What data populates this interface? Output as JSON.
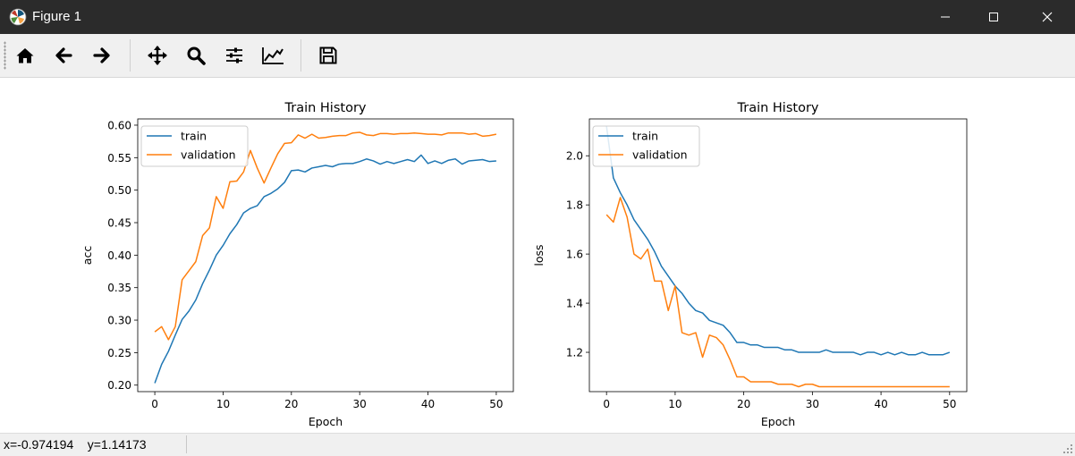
{
  "window": {
    "title": "Figure 1",
    "minimize_icon": "minimize-icon",
    "maximize_icon": "maximize-icon",
    "close_icon": "close-icon"
  },
  "toolbar": {
    "items": [
      {
        "name": "home-button",
        "icon": "home-icon"
      },
      {
        "name": "back-button",
        "icon": "arrow-left-icon"
      },
      {
        "name": "forward-button",
        "icon": "arrow-right-icon"
      },
      {
        "name": "pan-button",
        "icon": "move-icon"
      },
      {
        "name": "zoom-button",
        "icon": "magnifier-icon"
      },
      {
        "name": "subplots-button",
        "icon": "sliders-icon"
      },
      {
        "name": "edit-axes-button",
        "icon": "line-chart-icon"
      },
      {
        "name": "save-button",
        "icon": "floppy-disk-icon"
      }
    ]
  },
  "status": {
    "coords": "x=-0.974194    y=1.14173"
  },
  "colors": {
    "train": "#1f77b4",
    "validation": "#ff7f0e"
  },
  "chart_data": [
    {
      "type": "line",
      "title": "Train History",
      "xlabel": "Epoch",
      "ylabel": "acc",
      "xlim": [
        -2.5,
        52.5
      ],
      "ylim": [
        0.19,
        0.6096
      ],
      "xticks": [
        0,
        10,
        20,
        30,
        40,
        50
      ],
      "yticks": [
        0.2,
        0.25,
        0.3,
        0.35,
        0.4,
        0.45,
        0.5,
        0.55,
        0.6
      ],
      "ytick_decimals": 2,
      "grid": false,
      "legend": "upper left",
      "x": [
        0,
        1,
        2,
        3,
        4,
        5,
        6,
        7,
        8,
        9,
        10,
        11,
        12,
        13,
        14,
        15,
        16,
        17,
        18,
        19,
        20,
        21,
        22,
        23,
        24,
        25,
        26,
        27,
        28,
        29,
        30,
        31,
        32,
        33,
        34,
        35,
        36,
        37,
        38,
        39,
        40,
        41,
        42,
        43,
        44,
        45,
        46,
        47,
        48,
        49,
        50
      ],
      "series": [
        {
          "name": "train",
          "color": "#1f77b4",
          "values": [
            0.203,
            0.232,
            0.252,
            0.277,
            0.301,
            0.314,
            0.331,
            0.356,
            0.377,
            0.4,
            0.415,
            0.433,
            0.447,
            0.465,
            0.472,
            0.476,
            0.49,
            0.495,
            0.502,
            0.512,
            0.53,
            0.531,
            0.528,
            0.534,
            0.536,
            0.538,
            0.536,
            0.54,
            0.541,
            0.541,
            0.544,
            0.548,
            0.545,
            0.54,
            0.544,
            0.541,
            0.544,
            0.547,
            0.544,
            0.554,
            0.541,
            0.545,
            0.541,
            0.546,
            0.548,
            0.54,
            0.545,
            0.546,
            0.547,
            0.544,
            0.545
          ]
        },
        {
          "name": "validation",
          "color": "#ff7f0e",
          "values": [
            0.282,
            0.29,
            0.27,
            0.29,
            0.362,
            0.376,
            0.39,
            0.43,
            0.442,
            0.49,
            0.472,
            0.513,
            0.514,
            0.528,
            0.561,
            0.534,
            0.511,
            0.534,
            0.556,
            0.572,
            0.573,
            0.585,
            0.58,
            0.586,
            0.58,
            0.581,
            0.583,
            0.584,
            0.584,
            0.588,
            0.589,
            0.585,
            0.584,
            0.587,
            0.587,
            0.586,
            0.587,
            0.587,
            0.588,
            0.587,
            0.586,
            0.586,
            0.585,
            0.588,
            0.588,
            0.588,
            0.586,
            0.587,
            0.583,
            0.584,
            0.586
          ]
        }
      ]
    },
    {
      "type": "line",
      "title": "Train History",
      "xlabel": "Epoch",
      "ylabel": "loss",
      "xlim": [
        -2.5,
        52.5
      ],
      "ylim": [
        1.04,
        2.15
      ],
      "xticks": [
        0,
        10,
        20,
        30,
        40,
        50
      ],
      "yticks": [
        1.2,
        1.4,
        1.6,
        1.8,
        2.0
      ],
      "ytick_decimals": 1,
      "grid": false,
      "legend": "upper left",
      "x": [
        0,
        1,
        2,
        3,
        4,
        5,
        6,
        7,
        8,
        9,
        10,
        11,
        12,
        13,
        14,
        15,
        16,
        17,
        18,
        19,
        20,
        21,
        22,
        23,
        24,
        25,
        26,
        27,
        28,
        29,
        30,
        31,
        32,
        33,
        34,
        35,
        36,
        37,
        38,
        39,
        40,
        41,
        42,
        43,
        44,
        45,
        46,
        47,
        48,
        49,
        50
      ],
      "series": [
        {
          "name": "train",
          "color": "#1f77b4",
          "values": [
            2.12,
            1.91,
            1.85,
            1.8,
            1.74,
            1.7,
            1.66,
            1.61,
            1.55,
            1.51,
            1.47,
            1.44,
            1.4,
            1.37,
            1.36,
            1.33,
            1.32,
            1.31,
            1.28,
            1.24,
            1.24,
            1.23,
            1.23,
            1.22,
            1.22,
            1.22,
            1.21,
            1.21,
            1.2,
            1.2,
            1.2,
            1.2,
            1.21,
            1.2,
            1.2,
            1.2,
            1.2,
            1.19,
            1.2,
            1.2,
            1.19,
            1.2,
            1.19,
            1.2,
            1.19,
            1.19,
            1.2,
            1.19,
            1.19,
            1.19,
            1.2
          ]
        },
        {
          "name": "validation",
          "color": "#ff7f0e",
          "values": [
            1.76,
            1.73,
            1.83,
            1.75,
            1.6,
            1.58,
            1.62,
            1.49,
            1.49,
            1.37,
            1.47,
            1.28,
            1.27,
            1.28,
            1.18,
            1.27,
            1.26,
            1.23,
            1.17,
            1.1,
            1.1,
            1.08,
            1.08,
            1.08,
            1.08,
            1.07,
            1.07,
            1.07,
            1.06,
            1.07,
            1.07,
            1.06,
            1.06,
            1.06,
            1.06,
            1.06,
            1.06,
            1.06,
            1.06,
            1.06,
            1.06,
            1.06,
            1.06,
            1.06,
            1.06,
            1.06,
            1.06,
            1.06,
            1.06,
            1.06,
            1.06
          ]
        }
      ]
    }
  ]
}
